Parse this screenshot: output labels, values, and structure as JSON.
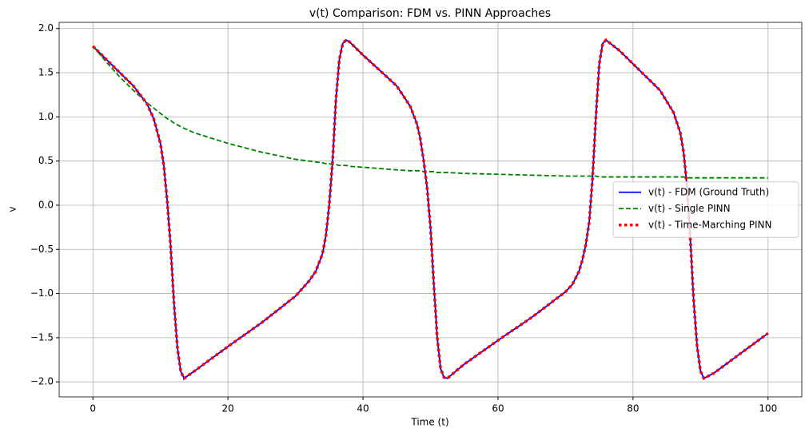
{
  "chart_data": {
    "type": "line",
    "title": "v(t) Comparison: FDM vs. PINN Approaches",
    "xlabel": "Time (t)",
    "ylabel": "v",
    "x": [
      0,
      2,
      4,
      6,
      8,
      9,
      10,
      10.5,
      11,
      11.5,
      12,
      12.5,
      13,
      13.5,
      15,
      20,
      25,
      30,
      32,
      33,
      34,
      34.5,
      35,
      35.5,
      36,
      36.5,
      37,
      37.5,
      38,
      40,
      45,
      47,
      48,
      48.5,
      49,
      49.5,
      50,
      50.5,
      51,
      51.5,
      52,
      52.5,
      55,
      60,
      65,
      70,
      71,
      72,
      72.5,
      73,
      73.5,
      74,
      74.5,
      75,
      75.5,
      76,
      78,
      80,
      84,
      86,
      87,
      87.5,
      88,
      88.5,
      89,
      89.5,
      90,
      90.5,
      92,
      95,
      100
    ],
    "series": [
      {
        "name": "v(t) - FDM (Ground Truth)",
        "color": "#0000ff",
        "dash": "solid",
        "linewidth": 1.8,
        "values": [
          1.8,
          1.65,
          1.5,
          1.35,
          1.15,
          0.98,
          0.7,
          0.45,
          0.05,
          -0.45,
          -1.1,
          -1.6,
          -1.88,
          -1.96,
          -1.88,
          -1.6,
          -1.33,
          -1.03,
          -0.86,
          -0.75,
          -0.55,
          -0.35,
          0.0,
          0.5,
          1.2,
          1.65,
          1.83,
          1.87,
          1.85,
          1.7,
          1.35,
          1.12,
          0.92,
          0.75,
          0.5,
          0.2,
          -0.25,
          -0.9,
          -1.5,
          -1.85,
          -1.95,
          -1.96,
          -1.8,
          -1.53,
          -1.27,
          -0.98,
          -0.9,
          -0.75,
          -0.62,
          -0.45,
          -0.2,
          0.3,
          1.0,
          1.6,
          1.83,
          1.87,
          1.75,
          1.6,
          1.3,
          1.05,
          0.82,
          0.6,
          0.2,
          -0.4,
          -1.1,
          -1.6,
          -1.88,
          -1.96,
          -1.9,
          -1.73,
          -1.45
        ]
      },
      {
        "name": "v(t) - Single PINN",
        "color": "#008000",
        "dash": "dashed",
        "linewidth": 1.8,
        "values": [
          1.8,
          1.62,
          1.45,
          1.3,
          1.16,
          1.1,
          1.04,
          1.01,
          0.98,
          0.96,
          0.93,
          0.91,
          0.89,
          0.87,
          0.82,
          0.7,
          0.6,
          0.52,
          0.5,
          0.49,
          0.48,
          0.47,
          0.47,
          0.46,
          0.46,
          0.45,
          0.45,
          0.45,
          0.44,
          0.43,
          0.4,
          0.39,
          0.39,
          0.39,
          0.38,
          0.38,
          0.38,
          0.38,
          0.37,
          0.37,
          0.37,
          0.37,
          0.36,
          0.35,
          0.34,
          0.33,
          0.33,
          0.33,
          0.33,
          0.33,
          0.33,
          0.33,
          0.33,
          0.32,
          0.32,
          0.32,
          0.32,
          0.32,
          0.32,
          0.32,
          0.32,
          0.32,
          0.31,
          0.31,
          0.31,
          0.31,
          0.31,
          0.31,
          0.31,
          0.31,
          0.31
        ]
      },
      {
        "name": "v(t) - Time-Marching PINN",
        "color": "#ff0000",
        "dash": "dotted",
        "linewidth": 3.5,
        "values": [
          1.8,
          1.65,
          1.5,
          1.35,
          1.15,
          0.98,
          0.7,
          0.45,
          0.05,
          -0.45,
          -1.1,
          -1.6,
          -1.88,
          -1.96,
          -1.88,
          -1.6,
          -1.33,
          -1.03,
          -0.86,
          -0.75,
          -0.55,
          -0.35,
          0.0,
          0.5,
          1.2,
          1.65,
          1.83,
          1.87,
          1.85,
          1.7,
          1.35,
          1.12,
          0.92,
          0.75,
          0.5,
          0.2,
          -0.25,
          -0.9,
          -1.5,
          -1.85,
          -1.95,
          -1.96,
          -1.8,
          -1.53,
          -1.27,
          -0.98,
          -0.9,
          -0.75,
          -0.62,
          -0.45,
          -0.2,
          0.3,
          1.0,
          1.6,
          1.83,
          1.87,
          1.75,
          1.6,
          1.3,
          1.05,
          0.82,
          0.6,
          0.2,
          -0.4,
          -1.1,
          -1.6,
          -1.88,
          -1.96,
          -1.9,
          -1.73,
          -1.45
        ]
      }
    ],
    "xlim": [
      -5,
      105
    ],
    "ylim": [
      -2.17,
      2.07
    ],
    "xticks": [
      0,
      20,
      40,
      60,
      80,
      100
    ],
    "yticks": [
      {
        "value": -2,
        "label": "−2.0"
      },
      {
        "value": -1.5,
        "label": "−1.5"
      },
      {
        "value": -1,
        "label": "−1.0"
      },
      {
        "value": -0.5,
        "label": "−0.5"
      },
      {
        "value": 0,
        "label": "0.0"
      },
      0.5,
      {
        "value": 1,
        "label": "1.0"
      },
      1.5,
      {
        "value": 2,
        "label": "2.0"
      }
    ],
    "grid": true,
    "legend": "center right"
  }
}
